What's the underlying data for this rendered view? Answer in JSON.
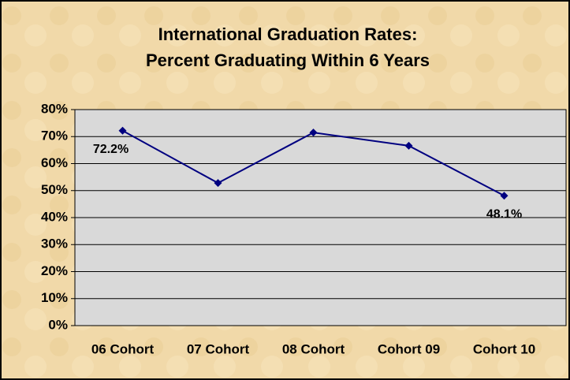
{
  "chart_data": {
    "type": "line",
    "title": [
      "International Graduation Rates:",
      "Percent Graduating Within 6 Years"
    ],
    "categories": [
      "06 Cohort",
      "07 Cohort",
      "08 Cohort",
      "Cohort 09",
      "Cohort 10"
    ],
    "series": [
      {
        "name": null,
        "color": "#000080",
        "values": [
          72.2,
          52.8,
          71.5,
          66.6,
          48.1
        ],
        "value_labels": [
          "72.2%",
          null,
          null,
          null,
          "48.1%"
        ]
      }
    ],
    "ylim": [
      0,
      80
    ],
    "yticks": [
      {
        "value": 0,
        "label": "0%"
      },
      {
        "value": 10,
        "label": "10%"
      },
      {
        "value": 20,
        "label": "20%"
      },
      {
        "value": 30,
        "label": "30%"
      },
      {
        "value": 40,
        "label": "40%"
      },
      {
        "value": 50,
        "label": "50%"
      },
      {
        "value": 60,
        "label": "60%"
      },
      {
        "value": 70,
        "label": "70%"
      },
      {
        "value": 80,
        "label": "80%"
      }
    ],
    "grid": true
  }
}
